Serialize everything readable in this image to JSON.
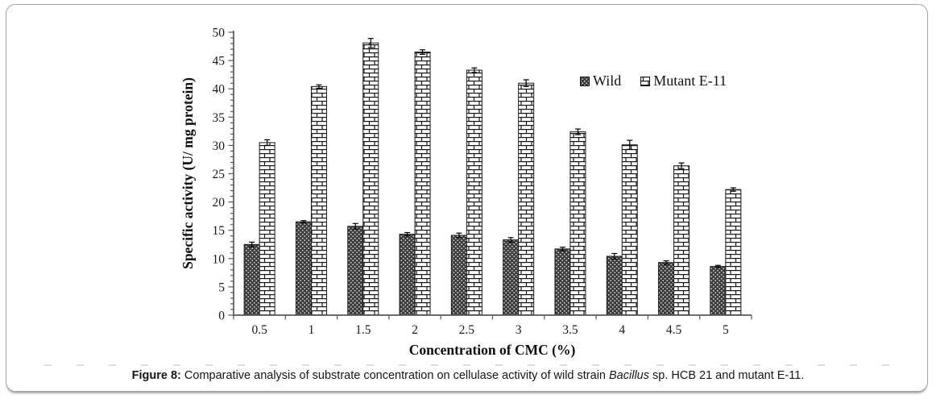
{
  "figure": {
    "caption": {
      "label": "Figure 8:",
      "text_before": " Comparative analysis of substrate concentration on cellulase activity of wild strain ",
      "italic_term": "Bacillus",
      "text_after": " sp. HCB 21 and mutant E-11."
    }
  },
  "chart_data": {
    "type": "bar",
    "title": "",
    "xlabel": "Concentration of CMC (%)",
    "ylabel": "Specific activity (U/ mg protein)",
    "categories": [
      "0.5",
      "1",
      "1.5",
      "2",
      "2.5",
      "3",
      "3.5",
      "4",
      "4.5",
      "5"
    ],
    "series": [
      {
        "name": "Wild",
        "pattern": "dark-dotted",
        "values": [
          12.5,
          16.5,
          15.7,
          14.3,
          14.1,
          13.3,
          11.7,
          10.4,
          9.3,
          8.6
        ],
        "errors": [
          0.4,
          0.2,
          0.5,
          0.3,
          0.4,
          0.4,
          0.3,
          0.5,
          0.3,
          0.2
        ]
      },
      {
        "name": "Mutant E-11",
        "pattern": "brick",
        "values": [
          30.5,
          40.4,
          48.1,
          46.5,
          43.3,
          41.0,
          32.4,
          30.1,
          26.4,
          22.2
        ],
        "errors": [
          0.5,
          0.3,
          0.8,
          0.4,
          0.4,
          0.6,
          0.5,
          0.8,
          0.5,
          0.3
        ]
      }
    ],
    "ylim": [
      0,
      50
    ],
    "y_major_step": 5,
    "y_minor_step": 1,
    "grid": false,
    "error_bars": true,
    "legend_position": "upper-right-inside",
    "colors": {
      "wild_fill": "#3e3e3e",
      "wild_dot": "#d9d9d9",
      "brick_bg": "#ffffff",
      "pattern_line": "#161616",
      "axis": "#595959",
      "text": "#1a1a1a"
    }
  }
}
